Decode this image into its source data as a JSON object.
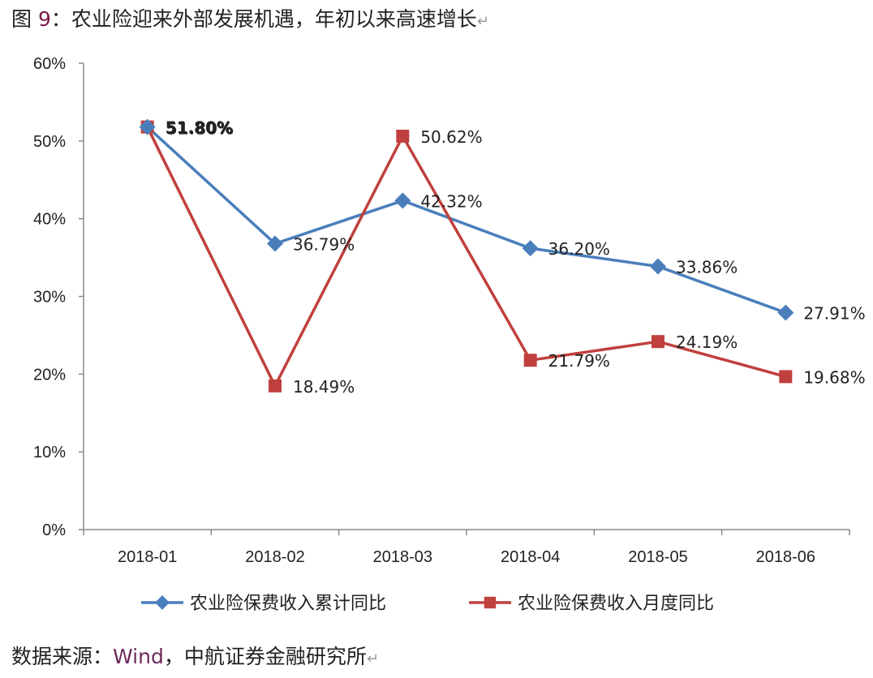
{
  "title": {
    "prefix": "图 ",
    "number": "9",
    "text": "：农业险迎来外部发展机遇，年初以来高速增长",
    "return_mark": "↵"
  },
  "source": {
    "prefix": "数据来源：",
    "wind": "Wind",
    "text": "，中航证券金融研究所",
    "return_mark": "↵"
  },
  "colors": {
    "series_cumulative": "#4a7ebb",
    "series_monthly": "#c0403d",
    "axis": "#888888"
  },
  "chart_data": {
    "type": "line",
    "title": "",
    "xlabel": "",
    "ylabel": "",
    "categories": [
      "2018-01",
      "2018-02",
      "2018-03",
      "2018-04",
      "2018-05",
      "2018-06"
    ],
    "ylim": [
      0,
      60
    ],
    "yticks": [
      0,
      10,
      20,
      30,
      40,
      50,
      60
    ],
    "ytick_labels": [
      "0%",
      "10%",
      "20%",
      "30%",
      "40%",
      "50%",
      "60%"
    ],
    "grid": false,
    "legend_position": "bottom",
    "series": [
      {
        "name": "农业险保费收入累计同比",
        "marker": "diamond",
        "values": [
          51.8,
          36.79,
          42.32,
          36.2,
          33.86,
          27.91
        ],
        "labels": [
          "51.80%",
          "36.79%",
          "42.32%",
          "36.20%",
          "33.86%",
          "27.91%"
        ]
      },
      {
        "name": "农业险保费收入月度同比",
        "marker": "square",
        "values": [
          51.8,
          18.49,
          50.62,
          21.79,
          24.19,
          19.68
        ],
        "labels": [
          "51.80%",
          "18.49%",
          "50.62%",
          "21.79%",
          "24.19%",
          "19.68%"
        ]
      }
    ]
  }
}
